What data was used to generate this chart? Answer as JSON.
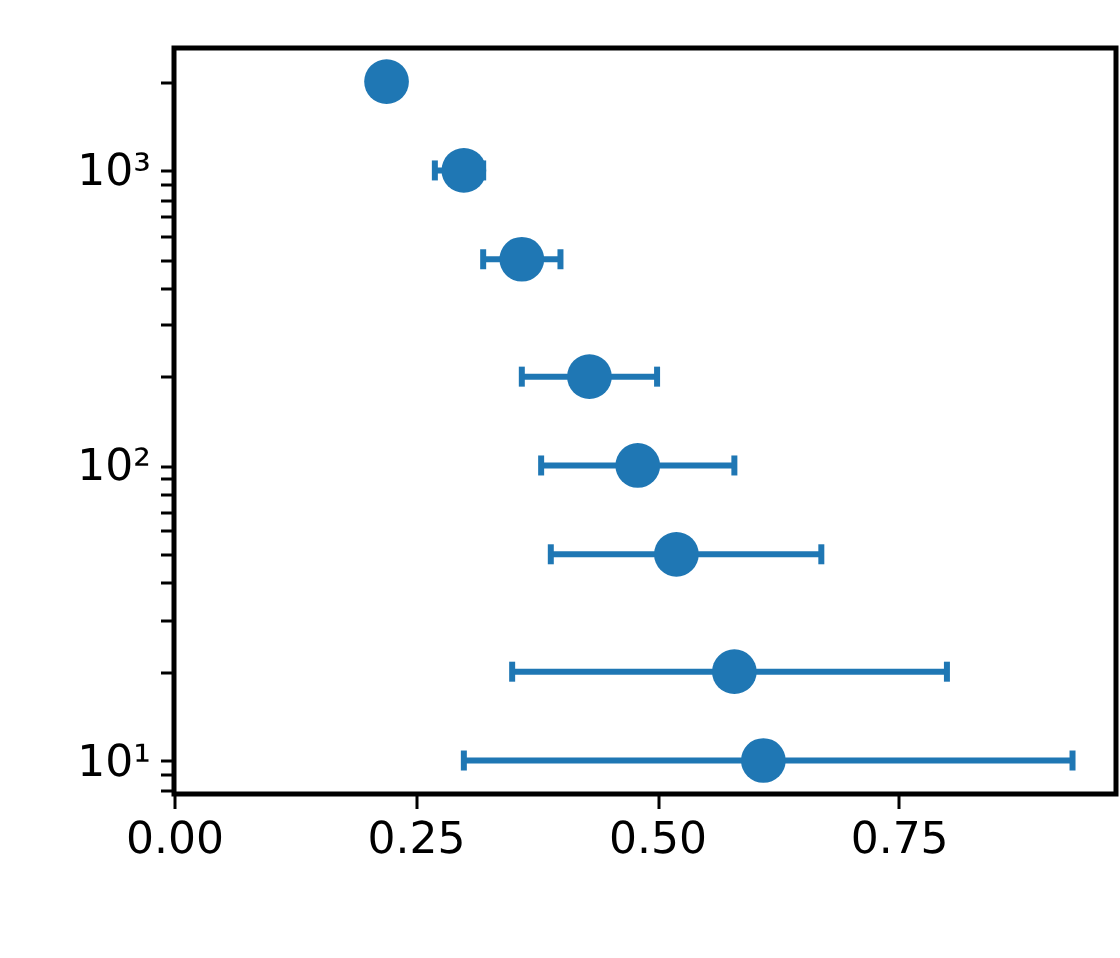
{
  "chart_data": {
    "type": "scatter",
    "log": "y",
    "grid": false,
    "marker": "circle",
    "x": [
      0.22,
      0.3,
      0.36,
      0.43,
      0.48,
      0.52,
      0.58,
      0.61
    ],
    "series": [
      {
        "color": "#1f77b4",
        "values": [
          2000,
          1000,
          500,
          200,
          100,
          50,
          20,
          10
        ],
        "xerrors": [
          null,
          [
            0.27,
            0.32
          ],
          [
            0.32,
            0.4
          ],
          [
            0.36,
            0.5
          ],
          [
            0.38,
            0.58
          ],
          [
            0.39,
            0.67
          ],
          [
            0.35,
            0.8
          ],
          [
            0.3,
            0.93
          ]
        ]
      }
    ],
    "xlim": [
      0,
      0.975
    ],
    "xticks": [
      {
        "value": 0,
        "label": "0.00"
      },
      {
        "value": 0.25,
        "label": "0.25"
      },
      {
        "value": 0.5,
        "label": "0.50"
      },
      {
        "value": 0.75,
        "label": "0.75"
      }
    ],
    "ylim": [
      7.7,
      2600
    ],
    "yticks": [
      {
        "value": 8,
        "label": null
      },
      {
        "value": 9,
        "label": null
      },
      {
        "value": 10,
        "label": "10¹"
      },
      {
        "value": 20,
        "label": null
      },
      {
        "value": 30,
        "label": null
      },
      {
        "value": 40,
        "label": null
      },
      {
        "value": 50,
        "label": null
      },
      {
        "value": 60,
        "label": null
      },
      {
        "value": 70,
        "label": null
      },
      {
        "value": 80,
        "label": null
      },
      {
        "value": 90,
        "label": null
      },
      {
        "value": 100,
        "label": "10²"
      },
      {
        "value": 200,
        "label": null
      },
      {
        "value": 300,
        "label": null
      },
      {
        "value": 400,
        "label": null
      },
      {
        "value": 500,
        "label": null
      },
      {
        "value": 600,
        "label": null
      },
      {
        "value": 700,
        "label": null
      },
      {
        "value": 800,
        "label": null
      },
      {
        "value": 900,
        "label": null
      },
      {
        "value": 1000,
        "label": "10³"
      },
      {
        "value": 2000,
        "label": null
      }
    ]
  }
}
